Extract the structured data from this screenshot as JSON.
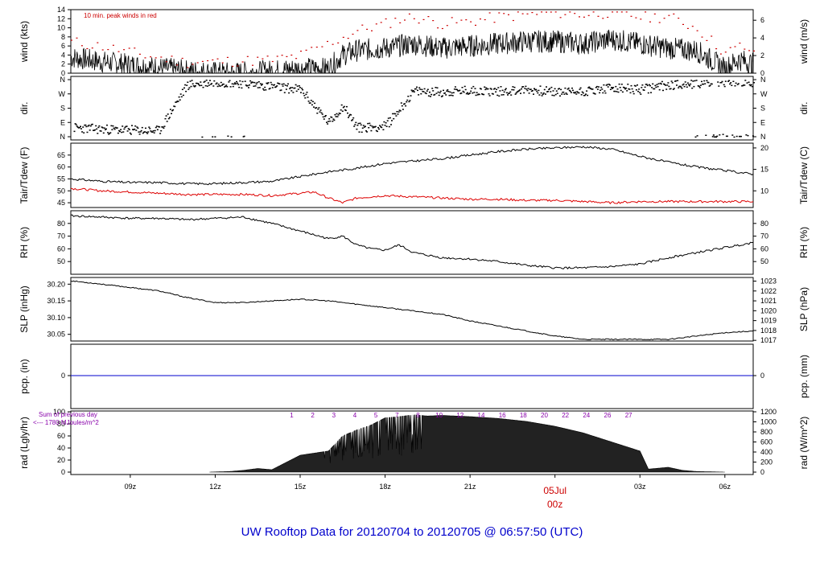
{
  "title": "UW Rooftop Data for 20120704  to  20120705 @ 06:57:50  (UTC)",
  "chart_data": [
    {
      "type": "line",
      "panel": "wind",
      "ylabel": "wind (kts)",
      "ylabel_right": "wind (m/s)",
      "ylim": [
        0,
        14
      ],
      "yticks": [
        0,
        2,
        4,
        6,
        8,
        10,
        12,
        14
      ],
      "yticks_right": [
        0,
        2,
        4,
        6
      ],
      "annotation": "10 min. peak winds in red",
      "series": [
        {
          "color": "#000000",
          "x": [
            6.9,
            8.0,
            9.5,
            11.0,
            12.5,
            14.0,
            15.0,
            16.0,
            16.5,
            17.0,
            18.0,
            18.5,
            19.0,
            20.0,
            21.0,
            22.0,
            23.0,
            24.0,
            25.0,
            26.0,
            27.0,
            28.0,
            29.0,
            30.0,
            30.5,
            31.0
          ],
          "y": [
            3.5,
            2.5,
            1.5,
            0.5,
            0.0,
            0.5,
            1.0,
            1.0,
            4.0,
            5.0,
            5.5,
            6.0,
            6.5,
            5.5,
            6.0,
            6.5,
            7.0,
            7.0,
            6.5,
            7.5,
            6.5,
            5.5,
            5.0,
            1.0,
            3.0,
            2.0
          ]
        },
        {
          "color": "#cc0000",
          "style": "dots",
          "x": [
            6.9,
            8.0,
            9.5,
            11.0,
            14.0,
            15.0,
            16.5,
            17.0,
            18.0,
            18.5,
            19.0,
            20.0,
            21.0,
            22.0,
            23.0,
            24.0,
            25.0,
            26.0,
            27.0,
            28.0,
            29.0,
            30.0,
            30.5,
            31.0
          ],
          "y": [
            7.0,
            6.0,
            4.0,
            2.5,
            3.0,
            4.0,
            8.0,
            9.5,
            11.0,
            12.0,
            12.5,
            11.0,
            11.5,
            12.5,
            13.0,
            13.5,
            13.0,
            13.5,
            12.5,
            12.5,
            10.0,
            4.5,
            6.0,
            5.0
          ]
        }
      ]
    },
    {
      "type": "scatter",
      "panel": "direction",
      "ylabel": "dir.",
      "ylabel_right": "dir.",
      "yticks": [
        "N",
        "E",
        "S",
        "W",
        "N"
      ],
      "series": [
        {
          "color": "#000000",
          "x": [
            7.0,
            8.0,
            9.0,
            10.0,
            11.0,
            12.0,
            13.0,
            14.0,
            15.0,
            16.0,
            16.5,
            17.0,
            18.0,
            19.0,
            20.0,
            21.0,
            22.0,
            23.0,
            24.0,
            25.0,
            26.0,
            27.0,
            28.0,
            29.0,
            30.0,
            31.0
          ],
          "y": [
            60,
            50,
            45,
            40,
            330,
            350,
            340,
            320,
            300,
            90,
            200,
            60,
            70,
            290,
            285,
            295,
            290,
            300,
            285,
            290,
            310,
            300,
            330,
            340,
            350,
            345
          ]
        }
      ]
    },
    {
      "type": "line",
      "panel": "temperature",
      "ylabel": "Tair/Tdew (F)",
      "ylabel_right": "Tair/Tdew (C)",
      "ylim": [
        43,
        70
      ],
      "yticks": [
        45,
        50,
        55,
        60,
        65
      ],
      "yticks_right": [
        10,
        15,
        20
      ],
      "series": [
        {
          "color": "#000000",
          "x": [
            6.9,
            8.0,
            9.0,
            10.0,
            11.0,
            12.0,
            13.0,
            14.0,
            15.0,
            16.0,
            17.0,
            18.0,
            19.0,
            20.0,
            21.0,
            22.0,
            23.0,
            24.0,
            25.0,
            26.0,
            27.0,
            28.0,
            29.0,
            30.0,
            31.0
          ],
          "y": [
            55,
            54,
            53.5,
            53.5,
            53,
            53,
            53.5,
            54,
            56,
            58,
            59.5,
            61.5,
            62.5,
            63.5,
            65,
            66.5,
            67.5,
            68,
            68.5,
            67.5,
            64.5,
            62,
            60,
            58.5,
            57
          ]
        },
        {
          "color": "#dd0000",
          "x": [
            6.9,
            8.0,
            9.0,
            10.0,
            11.0,
            12.0,
            13.0,
            14.0,
            15.0,
            15.5,
            16.0,
            16.5,
            17.0,
            18.0,
            19.0,
            20.0,
            21.0,
            22.0,
            23.0,
            24.0,
            25.0,
            26.0,
            27.0,
            28.0,
            29.0,
            30.0,
            31.0
          ],
          "y": [
            51,
            50,
            49.5,
            49,
            48.5,
            48.5,
            48.5,
            48,
            49,
            49.5,
            47,
            45,
            47,
            48,
            47.5,
            47,
            46.5,
            46.5,
            46,
            46,
            45.5,
            45,
            45.5,
            45.5,
            45.5,
            45.5,
            45.5
          ]
        }
      ]
    },
    {
      "type": "line",
      "panel": "rh",
      "ylabel": "RH (%)",
      "ylabel_right": "RH (%)",
      "ylim": [
        40,
        90
      ],
      "yticks": [
        50,
        60,
        70,
        80
      ],
      "yticks_right": [
        50,
        60,
        70,
        80
      ],
      "series": [
        {
          "color": "#000000",
          "x": [
            6.9,
            8.0,
            9.0,
            10.0,
            11.0,
            12.0,
            13.0,
            14.0,
            15.0,
            16.0,
            16.5,
            17.0,
            17.5,
            18.0,
            18.5,
            19.0,
            20.0,
            21.0,
            22.0,
            23.0,
            24.0,
            25.0,
            26.0,
            27.0,
            28.0,
            29.0,
            30.0,
            31.0
          ],
          "y": [
            86,
            85,
            84,
            84,
            83,
            84,
            85,
            80,
            74,
            68,
            70,
            63,
            60,
            59,
            63,
            57,
            53,
            52,
            50,
            47,
            45,
            45,
            46,
            48,
            53,
            57,
            61,
            65
          ]
        }
      ]
    },
    {
      "type": "line",
      "panel": "pressure",
      "ylabel": "SLP (inHg)",
      "ylabel_right": "SLP (hPa)",
      "ylim": [
        30.03,
        30.22
      ],
      "yticks": [
        30.05,
        30.1,
        30.15,
        30.2
      ],
      "yticks_right": [
        1017,
        1018,
        1019,
        1020,
        1021,
        1022,
        1023
      ],
      "series": [
        {
          "color": "#000000",
          "x": [
            6.9,
            8.0,
            9.0,
            10.0,
            11.0,
            12.0,
            13.0,
            14.0,
            15.0,
            16.0,
            17.0,
            18.0,
            19.0,
            20.0,
            21.0,
            22.0,
            23.0,
            24.0,
            25.0,
            26.0,
            27.0,
            28.0,
            29.0,
            30.0,
            31.0
          ],
          "y": [
            30.21,
            30.2,
            30.19,
            30.18,
            30.16,
            30.145,
            30.145,
            30.15,
            30.155,
            30.15,
            30.14,
            30.13,
            30.12,
            30.11,
            30.09,
            30.075,
            30.06,
            30.045,
            30.035,
            30.035,
            30.035,
            30.035,
            30.045,
            30.055,
            30.06
          ]
        }
      ]
    },
    {
      "type": "line",
      "panel": "precipitation",
      "ylabel": "pcp. (in)",
      "ylabel_right": "pcp. (mm)",
      "yticks": [
        0
      ],
      "yticks_right": [
        0
      ],
      "series": [
        {
          "color": "#0000cc",
          "x": [
            6.9,
            31.0
          ],
          "y": [
            0,
            0
          ]
        }
      ]
    },
    {
      "type": "area",
      "panel": "radiation",
      "ylabel": "rad (Lgly/hr)",
      "ylabel_right": "rad (W/m^2)",
      "ylim": [
        0,
        100
      ],
      "yticks": [
        0,
        20,
        40,
        60,
        80,
        100
      ],
      "yticks_right": [
        0,
        200,
        400,
        600,
        800,
        1000,
        1200
      ],
      "annotation_lines": [
        "Sum of previous day",
        "<--- 1780 MJoules/m^2"
      ],
      "day_counts": [
        "1",
        "2",
        "3",
        "4",
        "5",
        "7",
        "8",
        "10",
        "12",
        "14",
        "16",
        "18",
        "20",
        "22",
        "24",
        "26",
        "27"
      ],
      "series": [
        {
          "color": "#222222",
          "x": [
            11.8,
            12.5,
            13.0,
            13.5,
            14.0,
            15.0,
            16.0,
            16.5,
            17.0,
            17.5,
            18.0,
            18.5,
            19.0,
            19.5,
            20.0,
            21.0,
            22.0,
            23.0,
            24.0,
            25.0,
            26.0,
            27.0,
            27.3,
            28.0,
            28.5,
            29.0,
            30.0
          ],
          "y": [
            0,
            1,
            3,
            6,
            4,
            28,
            35,
            60,
            70,
            78,
            90,
            92,
            95,
            93,
            94,
            92,
            89,
            84,
            76,
            65,
            50,
            35,
            5,
            8,
            3,
            1,
            0
          ]
        }
      ]
    }
  ],
  "xaxis": {
    "ticks": [
      {
        "x": 9,
        "label": "09z"
      },
      {
        "x": 12,
        "label": "12z"
      },
      {
        "x": 15,
        "label": "15z"
      },
      {
        "x": 18,
        "label": "18z"
      },
      {
        "x": 21,
        "label": "21z"
      },
      {
        "x": 27,
        "label": "03z"
      },
      {
        "x": 30,
        "label": "06z"
      }
    ],
    "day_marker": {
      "x": 24,
      "date": "05Jul",
      "label": "00z"
    }
  },
  "colors": {
    "title": "#0000cc",
    "peak": "#cc0000",
    "dewpoint": "#dd0000",
    "pcp": "#0000cc",
    "note": "#8800aa"
  }
}
